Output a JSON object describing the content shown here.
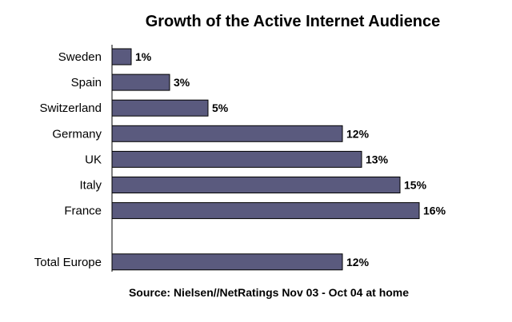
{
  "chart_data": {
    "type": "bar",
    "orientation": "horizontal",
    "title": "Growth of the Active Internet Audience",
    "source": "Source: Nielsen//NetRatings Nov 03 - Oct 04 at home",
    "categories": [
      "Sweden",
      "Spain",
      "Switzerland",
      "Germany",
      "UK",
      "Italy",
      "France",
      "",
      "Total Europe"
    ],
    "values": [
      1,
      3,
      5,
      12,
      13,
      15,
      16,
      null,
      12
    ],
    "value_labels": [
      "1%",
      "3%",
      "5%",
      "12%",
      "13%",
      "15%",
      "16%",
      "",
      "12%"
    ],
    "xlim": [
      0,
      16
    ],
    "grid": false,
    "bar_color": "#5a5a7e",
    "bar_edge_color": "#000000"
  }
}
